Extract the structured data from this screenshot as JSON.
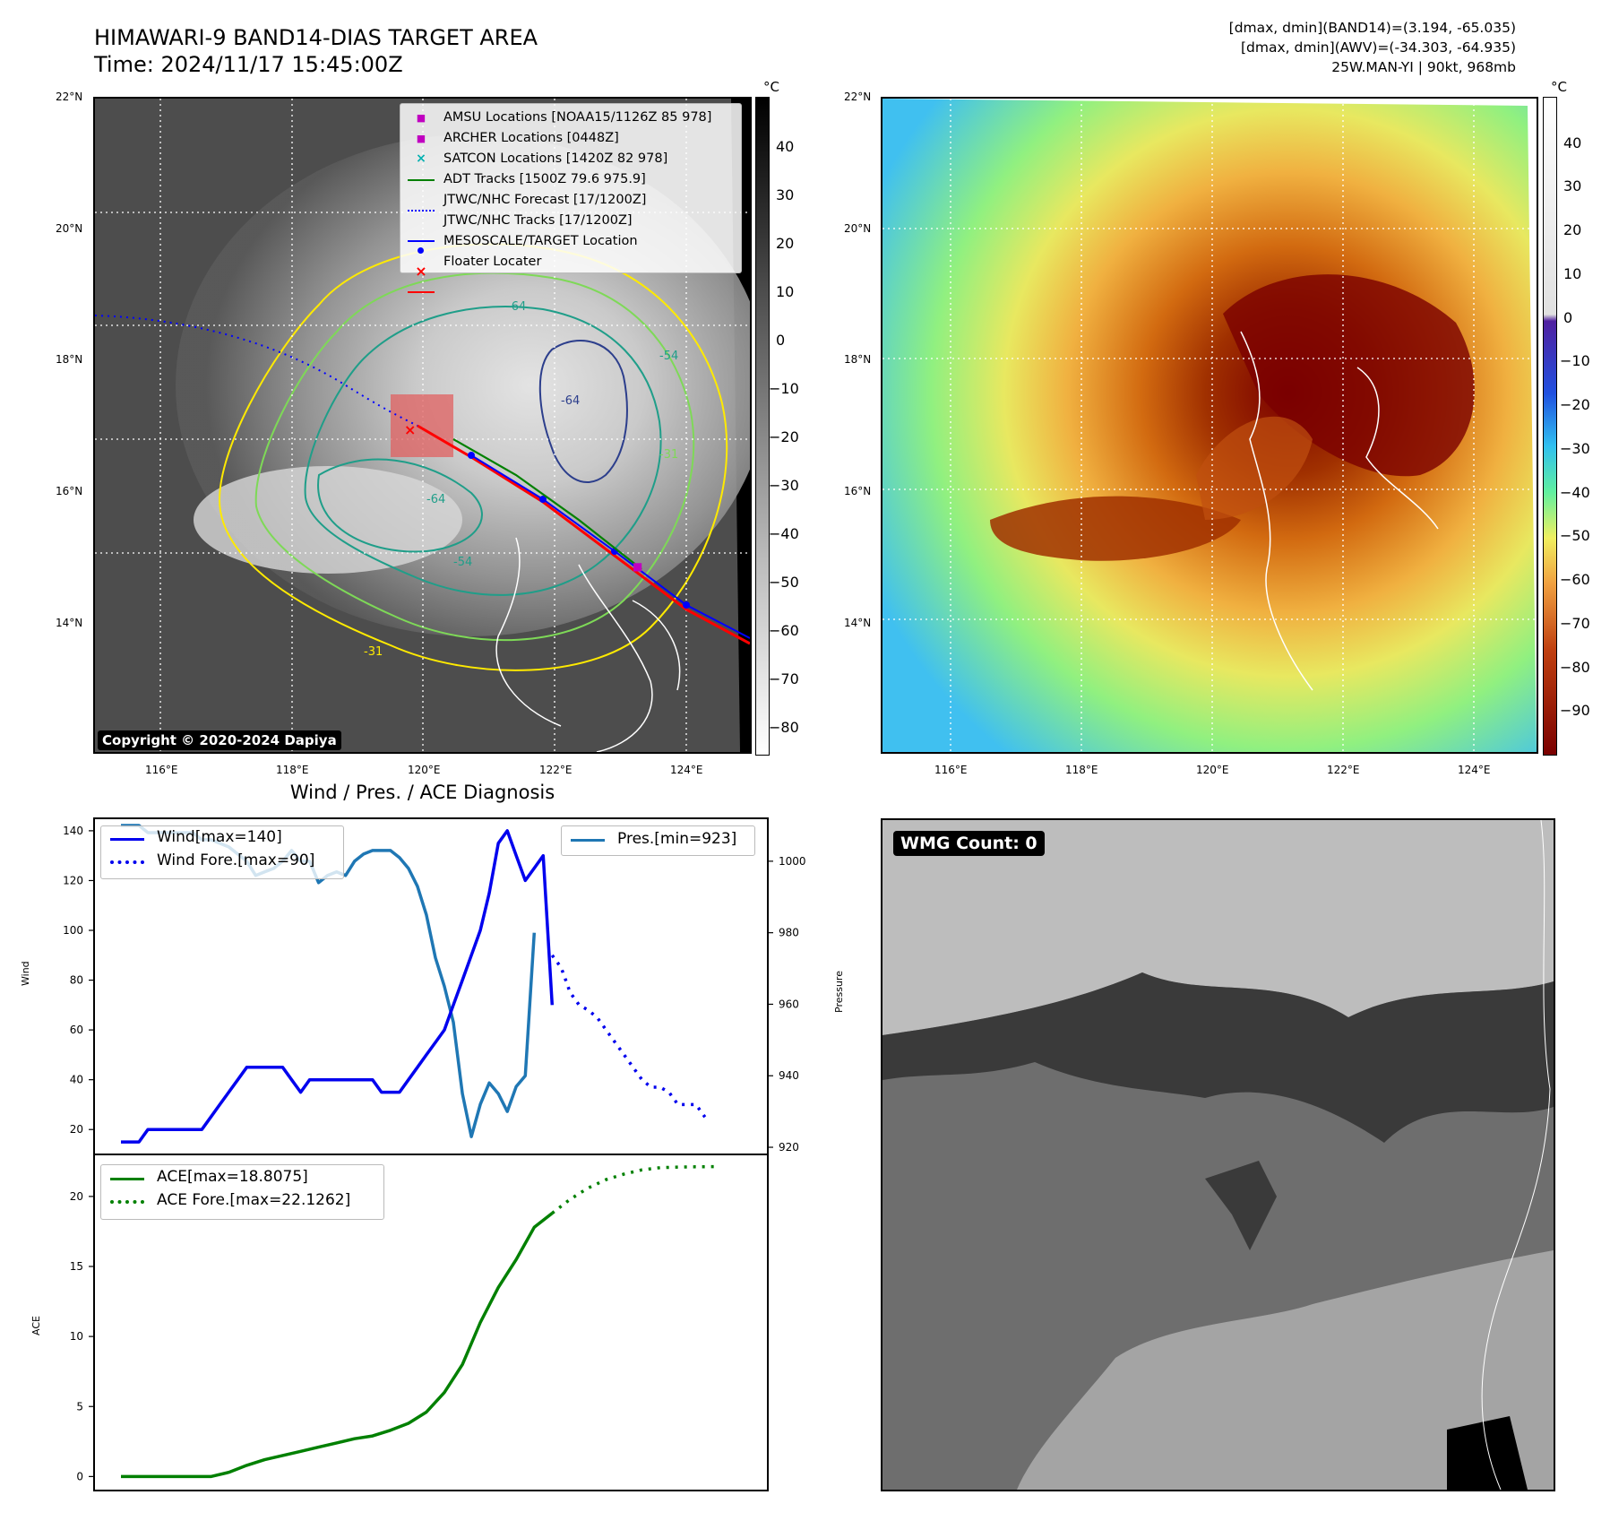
{
  "header": {
    "title_line1": "HIMAWARI-9 BAND14-DIAS TARGET AREA",
    "title_line2": "Time: 2024/11/17 15:45:00Z",
    "dmax_band14": "[dmax, dmin](BAND14)=(3.194, -65.035)",
    "dmax_awv": "[dmax, dmin](AWV)=(-34.303, -64.935)",
    "storm_info": "25W.MAN-YI | 90kt, 968mb"
  },
  "map": {
    "lat_labels": [
      "22°N",
      "20°N",
      "18°N",
      "16°N",
      "14°N"
    ],
    "lon_labels": [
      "116°E",
      "118°E",
      "120°E",
      "122°E",
      "124°E"
    ],
    "copyright": "Copyright © 2020-2024 Dapiya",
    "contour_labels": [
      "-64",
      "-54",
      "-64",
      "-31",
      "-64",
      "-54",
      "-31"
    ],
    "legend": [
      {
        "label": "AMSU Locations [NOAA15/1126Z 85 978]",
        "symbol": "square",
        "color": "#c000c0"
      },
      {
        "label": "ARCHER Locations [0448Z]",
        "symbol": "square",
        "color": "#c000c0"
      },
      {
        "label": "SATCON Locations [1420Z 82 978]",
        "symbol": "x",
        "color": "#00b0b0"
      },
      {
        "label": "ADT Tracks [1500Z 79.6 975.9]",
        "symbol": "line",
        "color": "#008000"
      },
      {
        "label": "JTWC/NHC Forecast [17/1200Z]",
        "symbol": "dotted",
        "color": "#0000ff"
      },
      {
        "label": "JTWC/NHC Tracks [17/1200Z]",
        "symbol": "line-dot",
        "color": "#0000ff"
      },
      {
        "label": "MESOSCALE/TARGET Location",
        "symbol": "x",
        "color": "#ff0000"
      },
      {
        "label": "Floater Locater",
        "symbol": "line",
        "color": "#ff0000"
      }
    ]
  },
  "colorbar_gray": {
    "unit": "°C",
    "ticks": [
      "40",
      "30",
      "20",
      "10",
      "0",
      "−10",
      "−20",
      "−30",
      "−40",
      "−50",
      "−60",
      "−70",
      "−80"
    ]
  },
  "colorbar_color": {
    "unit": "°C",
    "ticks": [
      "40",
      "30",
      "20",
      "10",
      "0",
      "−10",
      "−20",
      "−30",
      "−40",
      "−50",
      "−60",
      "−70",
      "−80",
      "−90"
    ]
  },
  "diagnosis": {
    "title": "Wind / Pres. / ACE Diagnosis",
    "wind_label": "Wind",
    "pressure_label": "Pressure",
    "ace_label": "ACE",
    "wmg": "WMG Count: 0"
  },
  "colors": {
    "wind": "#0000ee",
    "pressure": "#1f77b4",
    "ace": "#008000",
    "track_red": "#ff0000",
    "contour_yellow": "#ffea00",
    "contour_green": "#7ed957",
    "contour_teal": "#1f9e89",
    "contour_navy": "#2c3e8c"
  },
  "chart_data": [
    {
      "type": "line",
      "title": "Wind / Pres. / ACE Diagnosis",
      "ylabel": "Wind",
      "ylim": [
        10,
        145
      ],
      "yticks": [
        "140",
        "120",
        "100",
        "80",
        "60",
        "40",
        "20"
      ],
      "series": [
        {
          "name": "Wind[max=140]",
          "style": "solid",
          "color": "#0000ee",
          "x": [
            0,
            1,
            2,
            3,
            4,
            5,
            6,
            7,
            8,
            9,
            10,
            11,
            12,
            13,
            14,
            15,
            16,
            17,
            18,
            19,
            20,
            21,
            22,
            23,
            24,
            25,
            26,
            27,
            28,
            29,
            30,
            31,
            32,
            33,
            34,
            35,
            36,
            37,
            38,
            39,
            40,
            41,
            42,
            43,
            44,
            45,
            46,
            47,
            48,
            49,
            50,
            51,
            52,
            53,
            54,
            55,
            56,
            57
          ],
          "values": [
            15,
            15,
            15,
            20,
            20,
            20,
            20,
            20,
            20,
            20,
            25,
            30,
            35,
            40,
            45,
            45,
            45,
            45,
            45,
            40,
            35,
            40,
            40,
            40,
            40,
            40,
            40,
            40,
            40,
            35,
            35,
            35,
            40,
            45,
            50,
            55,
            60,
            70,
            80,
            90,
            100,
            115,
            135,
            140,
            130,
            120,
            125,
            130,
            70,
            null,
            null,
            null,
            null,
            null,
            null,
            null,
            null,
            null
          ]
        },
        {
          "name": "Wind Fore.[max=90]",
          "style": "dotted",
          "color": "#0000ee",
          "x": [
            48,
            49,
            50,
            51,
            52,
            53,
            54,
            55,
            56,
            57,
            58,
            59,
            60,
            61,
            62,
            63,
            64,
            65
          ],
          "values": [
            90,
            85,
            75,
            70,
            68,
            65,
            60,
            55,
            50,
            45,
            40,
            37,
            37,
            35,
            30,
            30,
            30,
            25
          ]
        }
      ]
    },
    {
      "type": "line",
      "ylabel": "Pressure",
      "ylim": [
        918,
        1012
      ],
      "yticks": [
        "1000",
        "980",
        "960",
        "940",
        "920"
      ],
      "series": [
        {
          "name": "Pres.[min=923]",
          "style": "solid",
          "color": "#1f77b4",
          "x": [
            0,
            1,
            2,
            3,
            4,
            5,
            6,
            7,
            8,
            9,
            10,
            11,
            12,
            13,
            14,
            15,
            16,
            17,
            18,
            19,
            20,
            21,
            22,
            23,
            24,
            25,
            26,
            27,
            28,
            29,
            30,
            31,
            32,
            33,
            34,
            35,
            36,
            37,
            38,
            39,
            40,
            41,
            42,
            43,
            44,
            45,
            46,
            47,
            48
          ],
          "values": [
            1010,
            1010,
            1010,
            1008,
            1008,
            1008,
            1008,
            1008,
            1008,
            1006,
            1006,
            1005,
            1004,
            1002,
            1000,
            996,
            997,
            998,
            1000,
            1003,
            1000,
            1000,
            994,
            996,
            997,
            996,
            1000,
            1002,
            1003,
            1003,
            1003,
            1001,
            998,
            993,
            985,
            973,
            965,
            955,
            935,
            923,
            932,
            938,
            935,
            930,
            937,
            940,
            980,
            null,
            null
          ]
        }
      ]
    },
    {
      "type": "line",
      "ylabel": "ACE",
      "ylim": [
        -1,
        23
      ],
      "yticks": [
        "20",
        "15",
        "10",
        "5",
        "0"
      ],
      "series": [
        {
          "name": "ACE[max=18.8075]",
          "style": "solid",
          "color": "#008000",
          "x": [
            0,
            2,
            4,
            6,
            8,
            10,
            12,
            14,
            16,
            18,
            20,
            22,
            24,
            26,
            28,
            30,
            32,
            34,
            36,
            38,
            40,
            42,
            44,
            46,
            48
          ],
          "values": [
            0,
            0,
            0,
            0,
            0,
            0,
            0.3,
            0.8,
            1.2,
            1.5,
            1.8,
            2.1,
            2.4,
            2.7,
            2.9,
            3.3,
            3.8,
            4.6,
            6.0,
            8.0,
            11.0,
            13.5,
            15.5,
            17.8,
            18.8
          ]
        },
        {
          "name": "ACE Fore.[max=22.1262]",
          "style": "dotted",
          "color": "#008000",
          "x": [
            48,
            50,
            52,
            54,
            56,
            58,
            60,
            62,
            64,
            66
          ],
          "values": [
            18.8,
            19.8,
            20.6,
            21.2,
            21.6,
            21.9,
            22.05,
            22.1,
            22.12,
            22.13
          ]
        }
      ]
    }
  ]
}
